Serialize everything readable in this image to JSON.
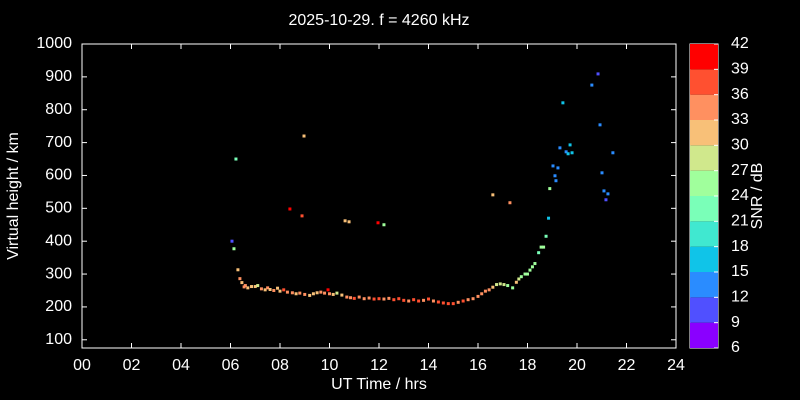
{
  "chart_data": {
    "type": "scatter",
    "title": "2025-10-29. f = 4260 kHz",
    "xlabel": "UT Time / hrs",
    "ylabel": "Virtual height / km",
    "xlim": [
      0,
      24
    ],
    "ylim": [
      75,
      1000
    ],
    "xticks": [
      {
        "value": 0,
        "label": "00"
      },
      {
        "value": 2,
        "label": "02"
      },
      {
        "value": 4,
        "label": "04"
      },
      {
        "value": 6,
        "label": "06"
      },
      {
        "value": 8,
        "label": "08"
      },
      {
        "value": 10,
        "label": "10"
      },
      {
        "value": 12,
        "label": "12"
      },
      {
        "value": 14,
        "label": "14"
      },
      {
        "value": 16,
        "label": "16"
      },
      {
        "value": 18,
        "label": "18"
      },
      {
        "value": 20,
        "label": "20"
      },
      {
        "value": 22,
        "label": "22"
      },
      {
        "value": 24,
        "label": "24"
      }
    ],
    "yticks": [
      100,
      200,
      300,
      400,
      500,
      600,
      700,
      800,
      900,
      1000
    ],
    "colorbar": {
      "label": "SNR / dB",
      "lim": [
        6,
        42
      ],
      "ticks": [
        6,
        9,
        12,
        15,
        18,
        21,
        24,
        27,
        30,
        33,
        36,
        39,
        42
      ],
      "colors": [
        "#8a00ff",
        "#5050ff",
        "#2a8cff",
        "#10c4e8",
        "#40e8d0",
        "#7affb8",
        "#a0ff9c",
        "#d0e88c",
        "#f8c078",
        "#ff9060",
        "#ff5030",
        "#ff0000"
      ]
    },
    "x": [
      6.06,
      6.14,
      6.22,
      6.3,
      6.38,
      6.46,
      6.55,
      6.6,
      6.7,
      6.85,
      7.0,
      7.1,
      7.25,
      7.4,
      7.5,
      7.6,
      7.75,
      7.9,
      8.0,
      8.15,
      8.3,
      8.5,
      8.65,
      8.8,
      9.0,
      9.2,
      9.35,
      9.5,
      9.65,
      9.8,
      10.0,
      10.15,
      10.3,
      10.5,
      10.7,
      10.85,
      11.0,
      11.2,
      11.4,
      11.6,
      11.8,
      12.0,
      12.2,
      12.4,
      12.6,
      12.8,
      13.0,
      13.2,
      13.4,
      13.6,
      13.8,
      14.0,
      14.2,
      14.4,
      14.6,
      14.8,
      15.0,
      15.2,
      15.4,
      15.6,
      15.8,
      16.0,
      16.15,
      16.3,
      16.45,
      16.6,
      16.75,
      16.9,
      17.05,
      17.2,
      17.4,
      17.55,
      17.65,
      17.75,
      17.9,
      18.0,
      18.1,
      18.2,
      18.3,
      18.45,
      18.55,
      18.65,
      18.75,
      18.85,
      18.9,
      19.03,
      19.11,
      19.15,
      19.23,
      19.31,
      19.43,
      19.56,
      19.64,
      19.72,
      19.8,
      20.6,
      20.85,
      20.93,
      21.01,
      21.09,
      21.17,
      21.25,
      21.45,
      8.97,
      8.4,
      8.89,
      10.63,
      10.79,
      11.96,
      12.2,
      16.6,
      17.29,
      9.94
    ],
    "values": [
      400,
      377,
      650,
      313,
      286,
      274,
      261,
      265,
      258,
      262,
      262,
      265,
      255,
      252,
      258,
      253,
      250,
      257,
      248,
      252,
      245,
      243,
      240,
      242,
      238,
      235,
      240,
      243,
      245,
      242,
      240,
      238,
      242,
      236,
      230,
      228,
      226,
      230,
      225,
      227,
      224,
      225,
      224,
      226,
      222,
      225,
      220,
      218,
      222,
      218,
      220,
      224,
      218,
      215,
      212,
      210,
      210,
      214,
      218,
      222,
      225,
      232,
      240,
      248,
      252,
      260,
      268,
      270,
      268,
      265,
      258,
      275,
      285,
      292,
      300,
      300,
      312,
      322,
      332,
      365,
      382,
      382,
      415,
      470,
      560,
      629,
      599,
      584,
      623,
      684,
      821,
      672,
      666,
      693,
      669,
      875,
      909,
      754,
      608,
      553,
      526,
      544,
      669,
      720,
      498,
      477,
      462,
      459,
      456,
      450,
      541,
      517,
      252
    ],
    "snr": [
      10,
      25,
      21,
      32,
      34,
      30,
      33,
      33,
      31,
      30,
      32,
      29,
      34,
      31,
      33,
      30,
      35,
      32,
      30,
      36,
      33,
      34,
      31,
      35,
      33,
      30,
      32,
      31,
      34,
      33,
      35,
      30,
      28,
      32,
      34,
      33,
      36,
      35,
      34,
      33,
      36,
      37,
      35,
      34,
      36,
      37,
      36,
      35,
      36,
      37,
      34,
      36,
      35,
      36,
      37,
      36,
      37,
      35,
      36,
      33,
      34,
      35,
      33,
      34,
      33,
      32,
      27,
      28,
      27,
      26,
      25,
      30,
      27,
      25,
      26,
      24,
      25,
      26,
      24,
      23,
      24,
      25,
      23,
      15,
      26,
      13,
      14,
      13,
      12,
      13,
      15,
      14,
      16,
      15,
      16,
      12,
      10,
      13,
      14,
      12,
      11,
      12,
      13,
      32,
      39,
      36,
      31,
      31,
      39,
      25,
      32,
      34,
      39
    ]
  }
}
